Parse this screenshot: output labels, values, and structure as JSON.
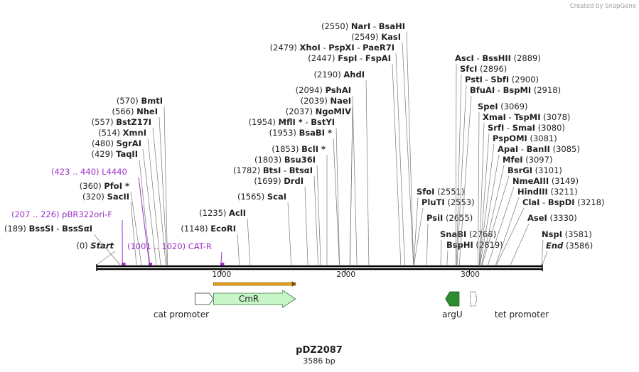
{
  "plasmid": {
    "name": "pDZ2087",
    "length_label": "3586 bp",
    "length": 3586
  },
  "credit": "Created by SnapGene",
  "scale": {
    "ticks": [
      "1000",
      "2000",
      "3000"
    ]
  },
  "sites": [
    {
      "pos": 0,
      "left": "(0)",
      "names": [
        "Start"
      ],
      "italic": true
    },
    {
      "pos": 189,
      "left": "(189)",
      "names": [
        "BssSI",
        "-",
        "BssSαI"
      ]
    },
    {
      "pos": 320,
      "left": "(320)",
      "names": [
        "SacII"
      ]
    },
    {
      "pos": 360,
      "left": "(360)",
      "names": [
        "PfoI *"
      ]
    },
    {
      "pos": 429,
      "left": "(429)",
      "names": [
        "TaqII"
      ]
    },
    {
      "pos": 480,
      "left": "(480)",
      "names": [
        "SgrAI"
      ]
    },
    {
      "pos": 514,
      "left": "(514)",
      "names": [
        "XmnI"
      ]
    },
    {
      "pos": 557,
      "left": "(557)",
      "names": [
        "BstZ17I"
      ]
    },
    {
      "pos": 566,
      "left": "(566)",
      "names": [
        "NheI"
      ]
    },
    {
      "pos": 570,
      "left": "(570)",
      "names": [
        "BmtI"
      ]
    },
    {
      "pos": 1148,
      "left": "(1148)",
      "names": [
        "EcoRI"
      ]
    },
    {
      "pos": 1235,
      "left": "(1235)",
      "names": [
        "AclI"
      ]
    },
    {
      "pos": 1565,
      "left": "(1565)",
      "names": [
        "ScaI"
      ]
    },
    {
      "pos": 1699,
      "left": "(1699)",
      "names": [
        "DrdI"
      ]
    },
    {
      "pos": 1782,
      "left": "(1782)",
      "names": [
        "BtsI",
        "-",
        "BtsαI"
      ]
    },
    {
      "pos": 1803,
      "left": "(1803)",
      "names": [
        "Bsu36I"
      ]
    },
    {
      "pos": 1853,
      "left": "(1853)",
      "names": [
        "BclI *"
      ]
    },
    {
      "pos": 1953,
      "left": "(1953)",
      "names": [
        "BsaBI *"
      ]
    },
    {
      "pos": 1954,
      "left": "(1954)",
      "names": [
        "MflI *",
        "-",
        "BstYI"
      ]
    },
    {
      "pos": 2037,
      "left": "(2037)",
      "names": [
        "NgoMIV"
      ]
    },
    {
      "pos": 2039,
      "left": "(2039)",
      "names": [
        "NaeI"
      ]
    },
    {
      "pos": 2094,
      "left": "(2094)",
      "names": [
        "PshAI"
      ]
    },
    {
      "pos": 2190,
      "left": "(2190)",
      "names": [
        "AhdI"
      ]
    },
    {
      "pos": 2447,
      "left": "(2447)",
      "names": [
        "FspI",
        "-",
        "FspAI"
      ]
    },
    {
      "pos": 2479,
      "left": "(2479)",
      "names": [
        "XhoI",
        "-",
        "PspXI",
        "-",
        "PaeR7I"
      ]
    },
    {
      "pos": 2549,
      "left": "(2549)",
      "names": [
        "KasI"
      ]
    },
    {
      "pos": 2550,
      "left": "(2550)",
      "names": [
        "NarI",
        "-",
        "BsaHI"
      ]
    },
    {
      "pos": 2551,
      "right": "(2551)",
      "names": [
        "SfoI"
      ]
    },
    {
      "pos": 2553,
      "right": "(2553)",
      "names": [
        "PluTI"
      ]
    },
    {
      "pos": 2655,
      "right": "(2655)",
      "names": [
        "PsiI"
      ]
    },
    {
      "pos": 2768,
      "right": "(2768)",
      "names": [
        "SnaBI"
      ]
    },
    {
      "pos": 2819,
      "right": "(2819)",
      "names": [
        "BspHI"
      ]
    },
    {
      "pos": 2889,
      "right": "(2889)",
      "names": [
        "AscI",
        "-",
        "BssHII"
      ]
    },
    {
      "pos": 2896,
      "right": "(2896)",
      "names": [
        "SfcI"
      ]
    },
    {
      "pos": 2900,
      "right": "(2900)",
      "names": [
        "PstI",
        "-",
        "SbfI"
      ]
    },
    {
      "pos": 2918,
      "right": "(2918)",
      "names": [
        "BfuAI",
        "-",
        "BspMI"
      ]
    },
    {
      "pos": 3069,
      "right": "(3069)",
      "names": [
        "SpeI"
      ]
    },
    {
      "pos": 3078,
      "right": "(3078)",
      "names": [
        "XmaI",
        "-",
        "TspMI"
      ]
    },
    {
      "pos": 3080,
      "right": "(3080)",
      "names": [
        "SrfI",
        "-",
        "SmaI"
      ]
    },
    {
      "pos": 3081,
      "right": "(3081)",
      "names": [
        "PspOMI"
      ]
    },
    {
      "pos": 3085,
      "right": "(3085)",
      "names": [
        "ApaI",
        "-",
        "BanII"
      ]
    },
    {
      "pos": 3097,
      "right": "(3097)",
      "names": [
        "MfeI"
      ]
    },
    {
      "pos": 3101,
      "right": "(3101)",
      "names": [
        "BsrGI"
      ]
    },
    {
      "pos": 3149,
      "right": "(3149)",
      "names": [
        "NmeAIII"
      ]
    },
    {
      "pos": 3211,
      "right": "(3211)",
      "names": [
        "HindIII"
      ]
    },
    {
      "pos": 3218,
      "right": "(3218)",
      "names": [
        "ClaI",
        "-",
        "BspDI"
      ]
    },
    {
      "pos": 3330,
      "right": "(3330)",
      "names": [
        "AseI"
      ]
    },
    {
      "pos": 3581,
      "right": "(3581)",
      "names": [
        "NspI"
      ]
    },
    {
      "pos": 3586,
      "right": "(3586)",
      "names": [
        "End"
      ],
      "italic": true
    }
  ],
  "primers": [
    {
      "range": "(207 .. 226)",
      "name": "pBR322ori-F",
      "start": 207,
      "end": 226
    },
    {
      "range": "(423 .. 440)",
      "name": "L4440",
      "start": 423,
      "end": 440
    },
    {
      "range": "(1001 .. 1020)",
      "name": "CAT-R",
      "start": 1001,
      "end": 1020
    }
  ],
  "features": [
    {
      "label": "cat promoter",
      "start": 837,
      "end": 940,
      "color": "#ffffff"
    },
    {
      "label": "CmR",
      "start": 940,
      "end": 1600,
      "color": "#c8f5c8"
    },
    {
      "label": "argU",
      "start": 2830,
      "end": 2905,
      "color": "#2e8b2e"
    },
    {
      "label": "tet promoter",
      "start": 3030,
      "end": 3070,
      "color": "#ffffff"
    }
  ],
  "orf": {
    "start": 940,
    "end": 1600,
    "color": "#e8a020"
  }
}
